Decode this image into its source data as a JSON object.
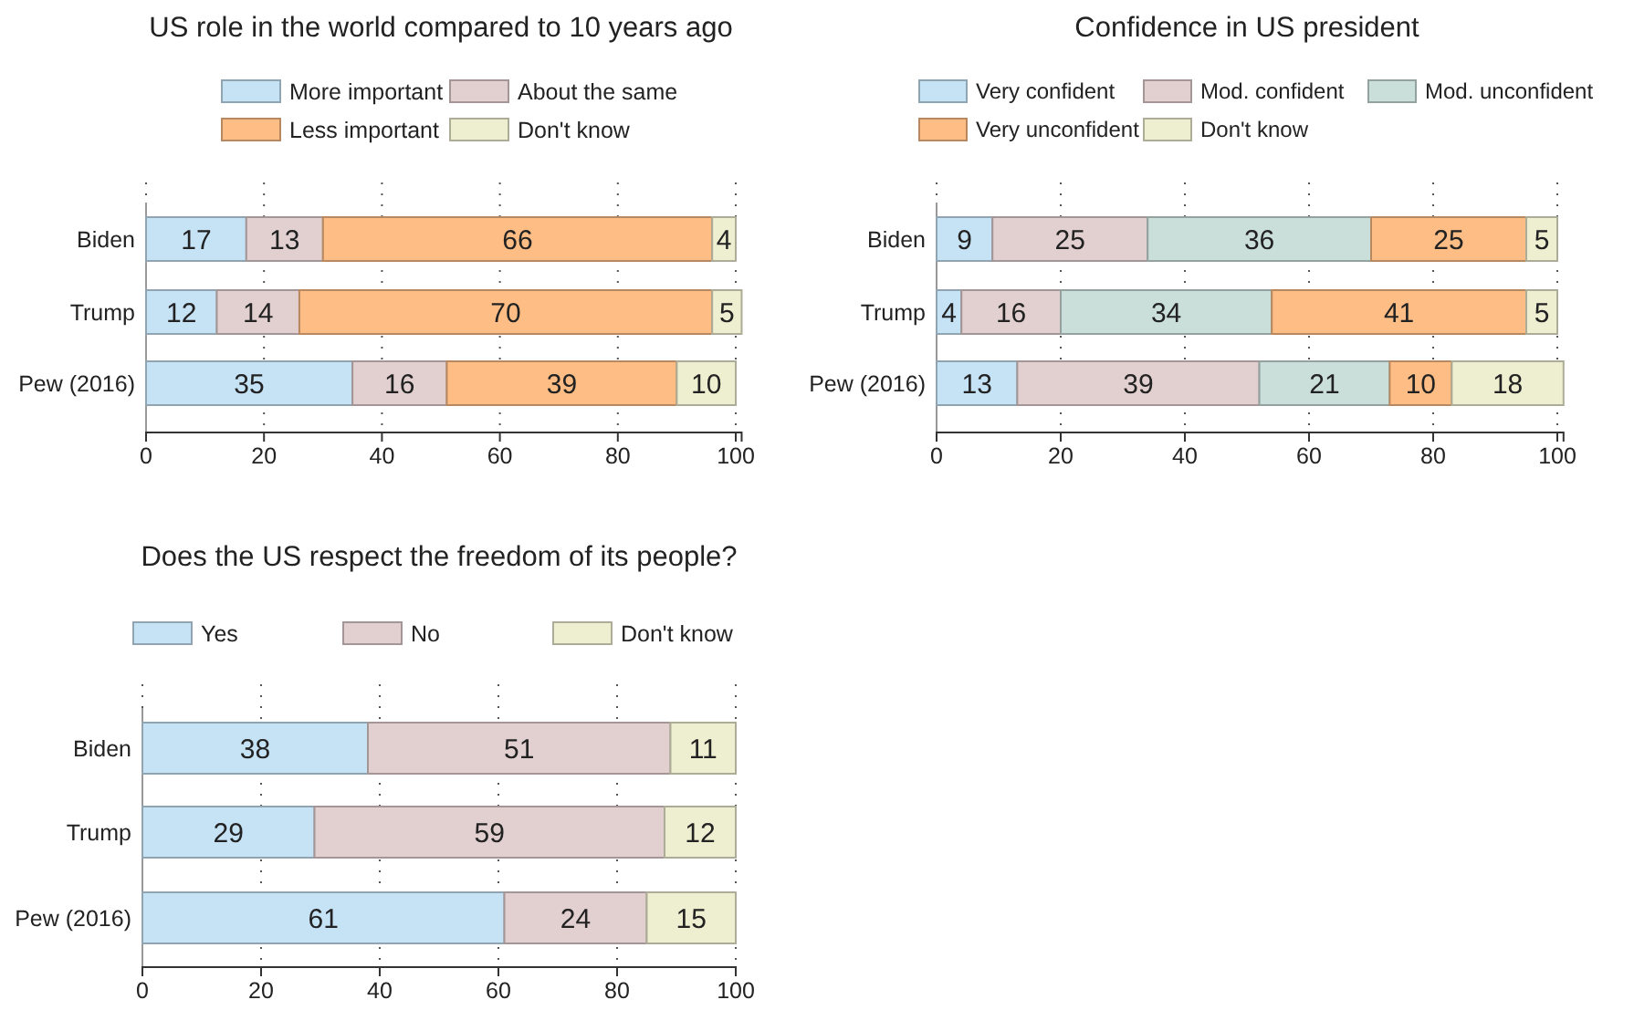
{
  "chart_data": [
    {
      "type": "bar",
      "orientation": "horizontal",
      "stacked": true,
      "title": "US role in the world compared to 10 years ago",
      "categories": [
        "Biden",
        "Trump",
        "Pew (2016)"
      ],
      "xlim": [
        0,
        101
      ],
      "xticks": [
        0,
        20,
        40,
        60,
        80,
        100
      ],
      "grid": "x",
      "legend": "top",
      "data_labels": true,
      "series": [
        {
          "name": "More important",
          "color": "#c6e2f5",
          "values": [
            17,
            12,
            35
          ]
        },
        {
          "name": "About the same",
          "color": "#e2cfcf",
          "values": [
            13,
            14,
            16
          ]
        },
        {
          "name": "Less important",
          "color": "#fdbd84",
          "values": [
            66,
            70,
            39
          ]
        },
        {
          "name": "Don't know",
          "color": "#eeeed0",
          "values": [
            4,
            5,
            10
          ]
        }
      ]
    },
    {
      "type": "bar",
      "orientation": "horizontal",
      "stacked": true,
      "title": "Confidence in US president",
      "categories": [
        "Biden",
        "Trump",
        "Pew (2016)"
      ],
      "xlim": [
        0,
        101
      ],
      "xticks": [
        0,
        20,
        40,
        60,
        80,
        100
      ],
      "grid": "x",
      "legend": "top",
      "data_labels": true,
      "series": [
        {
          "name": "Very confident",
          "color": "#c6e2f5",
          "values": [
            9,
            4,
            13
          ]
        },
        {
          "name": "Mod. confident",
          "color": "#e2cfcf",
          "values": [
            25,
            16,
            39
          ]
        },
        {
          "name": "Mod. unconfident",
          "color": "#cadfda",
          "values": [
            36,
            34,
            21
          ]
        },
        {
          "name": "Very unconfident",
          "color": "#fdbd84",
          "values": [
            25,
            41,
            10
          ]
        },
        {
          "name": "Don't know",
          "color": "#eeeed0",
          "values": [
            5,
            5,
            18
          ]
        }
      ]
    },
    {
      "type": "bar",
      "orientation": "horizontal",
      "stacked": true,
      "title": "Does the US respect the freedom of its people?",
      "categories": [
        "Biden",
        "Trump",
        "Pew (2016)"
      ],
      "xlim": [
        0,
        100
      ],
      "xticks": [
        0,
        20,
        40,
        60,
        80,
        100
      ],
      "grid": "x",
      "legend": "top",
      "data_labels": true,
      "series": [
        {
          "name": "Yes",
          "color": "#c6e2f5",
          "values": [
            38,
            29,
            61
          ]
        },
        {
          "name": "No",
          "color": "#e2cfcf",
          "values": [
            51,
            59,
            24
          ]
        },
        {
          "name": "Don't know",
          "color": "#eeeed0",
          "values": [
            11,
            12,
            15
          ]
        }
      ]
    }
  ]
}
